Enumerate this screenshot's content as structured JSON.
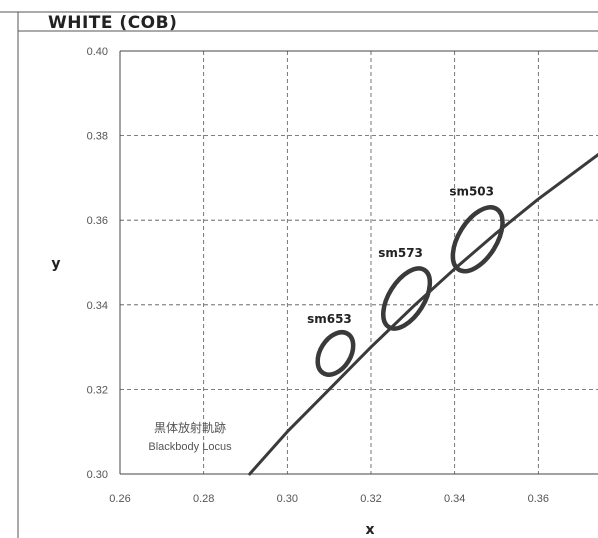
{
  "header": {
    "title": "WHITE (COB)"
  },
  "chart_data": {
    "type": "scatter",
    "xlabel": "x",
    "ylabel": "y",
    "xlim": [
      0.26,
      0.38
    ],
    "ylim": [
      0.3,
      0.4
    ],
    "x_ticks": [
      "0.26",
      "0.28",
      "0.30",
      "0.32",
      "0.34",
      "0.36"
    ],
    "y_ticks": [
      "0.30",
      "0.32",
      "0.34",
      "0.36",
      "0.38",
      "0.40"
    ],
    "grid": true,
    "color": "#3a3a3a",
    "blackbody_locus": {
      "label_ja": "黒体放射軌跡",
      "label_en": "Blackbody Locus",
      "points": [
        [
          0.291,
          0.3
        ],
        [
          0.3,
          0.31
        ],
        [
          0.31,
          0.32
        ],
        [
          0.32,
          0.33
        ],
        [
          0.33,
          0.3395
        ],
        [
          0.34,
          0.3485
        ],
        [
          0.35,
          0.357
        ],
        [
          0.36,
          0.365
        ],
        [
          0.375,
          0.376
        ]
      ]
    },
    "ellipses": [
      {
        "name": "sm653",
        "cx": 0.3115,
        "cy": 0.3285,
        "rx": 0.0055,
        "ry": 0.0036,
        "angle_deg": -58
      },
      {
        "name": "sm573",
        "cx": 0.3285,
        "cy": 0.3415,
        "rx": 0.008,
        "ry": 0.0042,
        "angle_deg": -58
      },
      {
        "name": "sm503",
        "cx": 0.3455,
        "cy": 0.3555,
        "rx": 0.0085,
        "ry": 0.0045,
        "angle_deg": -58
      }
    ]
  }
}
